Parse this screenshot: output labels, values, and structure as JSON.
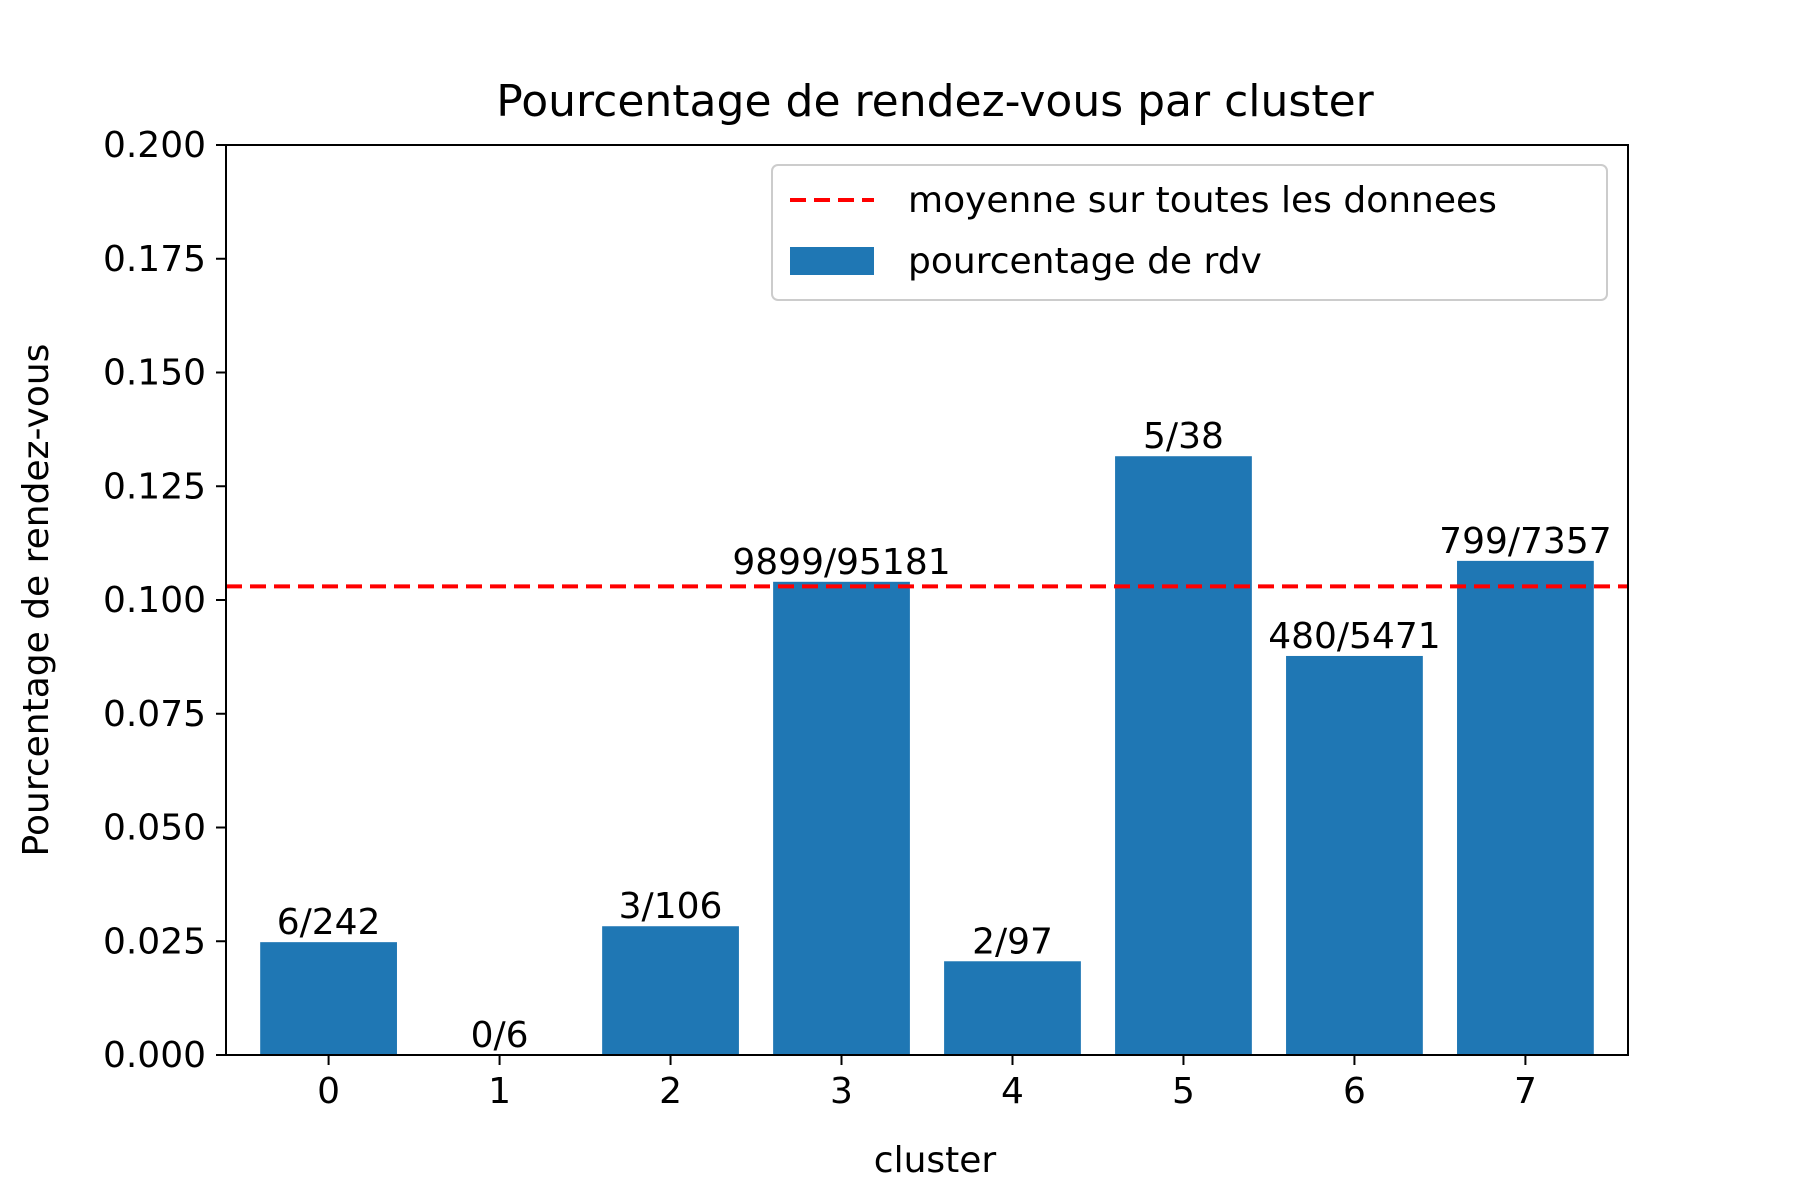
{
  "chart_data": {
    "type": "bar",
    "title": "Pourcentage de rendez-vous par cluster",
    "xlabel": "cluster",
    "ylabel": "Pourcentage de rendez-vous",
    "categories": [
      "0",
      "1",
      "2",
      "3",
      "4",
      "5",
      "6",
      "7"
    ],
    "values": [
      0.0248,
      0.0,
      0.0283,
      0.104,
      0.0206,
      0.1316,
      0.0877,
      0.1086
    ],
    "bar_labels": [
      "6/242",
      "0/6",
      "3/106",
      "9899/95181",
      "2/97",
      "5/38",
      "480/5471",
      "799/7357"
    ],
    "ylim": [
      0,
      0.2
    ],
    "yticks": [
      "0.000",
      "0.025",
      "0.050",
      "0.075",
      "0.100",
      "0.125",
      "0.150",
      "0.175",
      "0.200"
    ],
    "mean_line": 0.103,
    "legend": {
      "position": "top-right",
      "entries": [
        {
          "label": "moyenne sur toutes les donnees",
          "kind": "dashed-line",
          "color": "#ff0000"
        },
        {
          "label": "pourcentage de rdv",
          "kind": "bar",
          "color": "#1f77b4"
        }
      ]
    },
    "bar_color": "#1f77b4",
    "mean_color": "#ff0000",
    "grid": false
  }
}
